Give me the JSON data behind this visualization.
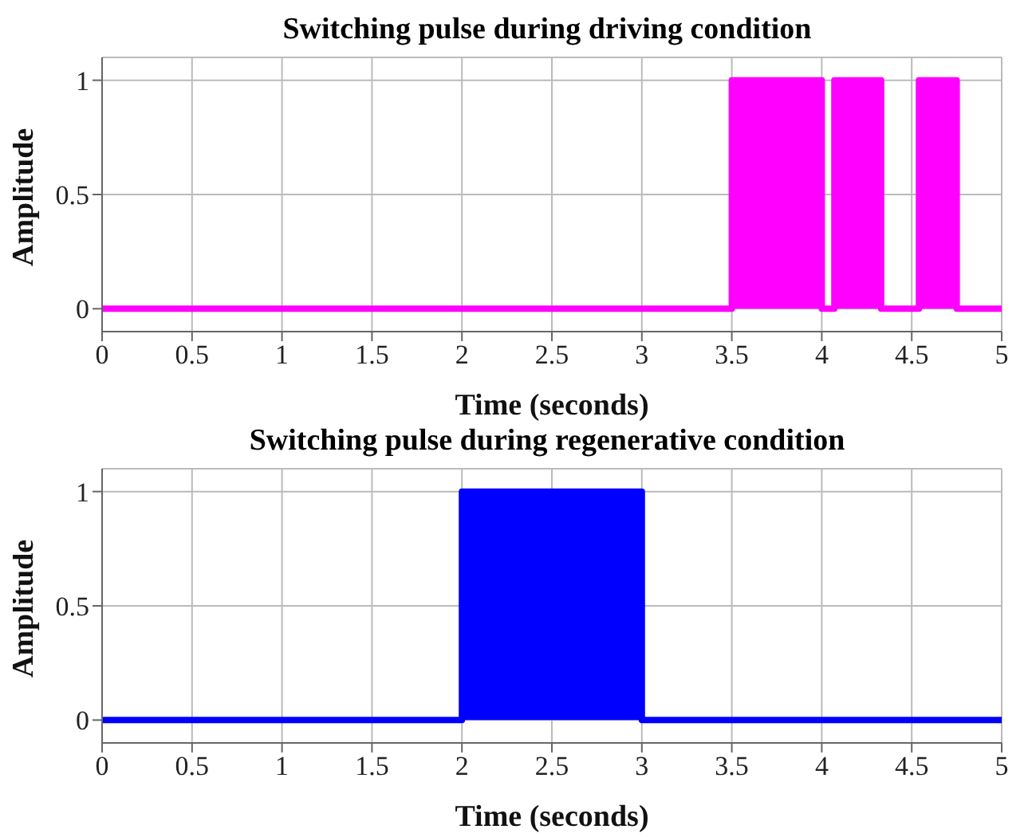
{
  "chart_data": [
    {
      "type": "area",
      "title": "Switching pulse during driving condition",
      "xlabel": "Time (seconds)",
      "ylabel": "Amplitude",
      "x": [
        0,
        3.5,
        3.5,
        4.0,
        4.0,
        4.07,
        4.07,
        4.33,
        4.33,
        4.54,
        4.54,
        4.75,
        4.75,
        5
      ],
      "series": [
        {
          "color": "#ff00ff",
          "values": [
            0,
            0,
            1,
            1,
            0,
            0,
            1,
            1,
            0,
            0,
            1,
            1,
            0,
            0
          ]
        }
      ],
      "xlim": [
        0,
        5
      ],
      "xticks": [
        0,
        0.5,
        1,
        1.5,
        2,
        2.5,
        3,
        3.5,
        4,
        4.5,
        5
      ],
      "ylim": [
        -0.1,
        1.1
      ],
      "yticks": [
        0,
        0.5,
        1
      ],
      "grid": true
    },
    {
      "type": "area",
      "title": "Switching pulse during regenerative condition",
      "xlabel": "Time (seconds)",
      "ylabel": "Amplitude",
      "x": [
        0,
        2,
        2,
        3,
        3,
        5
      ],
      "series": [
        {
          "color": "#0000ff",
          "values": [
            0,
            0,
            1,
            1,
            0,
            0
          ]
        }
      ],
      "xlim": [
        0,
        5
      ],
      "xticks": [
        0,
        0.5,
        1,
        1.5,
        2,
        2.5,
        3,
        3.5,
        4,
        4.5,
        5
      ],
      "ylim": [
        -0.1,
        1.1
      ],
      "yticks": [
        0,
        0.5,
        1
      ],
      "grid": true
    }
  ]
}
